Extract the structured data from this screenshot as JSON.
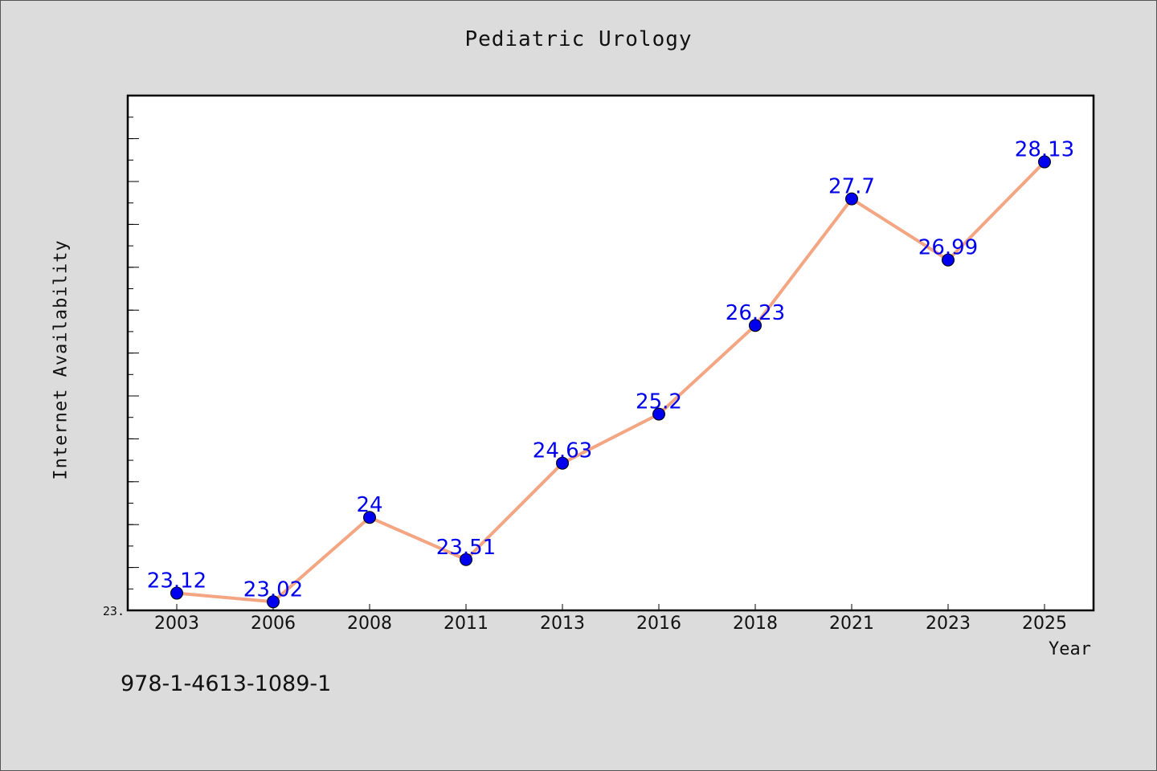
{
  "chart_data": {
    "type": "line",
    "title": "Pediatric Urology",
    "xlabel": "Year",
    "ylabel": "Internet Availability",
    "categories": [
      "2003",
      "2006",
      "2008",
      "2011",
      "2013",
      "2016",
      "2018",
      "2021",
      "2023",
      "2025"
    ],
    "series": [
      {
        "values": [
          23.12,
          23.02,
          24,
          23.51,
          24.63,
          25.2,
          26.23,
          27.7,
          26.99,
          28.13
        ],
        "labels": [
          "23.12",
          "23.02",
          "24",
          "23.51",
          "24.63",
          "25.2",
          "26.23",
          "27.7",
          "26.99",
          "28.13"
        ]
      }
    ],
    "ytick_label": "23.",
    "ylim": [
      22.92,
      28.9
    ],
    "grid": false,
    "line_color": "#f4a582",
    "marker_color": "#0000ee",
    "label_color": "#0000ee"
  },
  "footer": {
    "isbn": "978-1-4613-1089-1"
  }
}
